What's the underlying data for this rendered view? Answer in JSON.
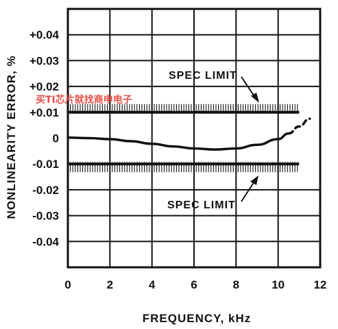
{
  "chart_data": {
    "type": "line",
    "xlabel": "FREQUENCY, kHz",
    "ylabel": "NONLINEARITY ERROR, %",
    "xlim": [
      0,
      12
    ],
    "ylim": [
      -0.05,
      0.05
    ],
    "x_ticks": [
      "0",
      "2",
      "4",
      "6",
      "8",
      "10",
      "12"
    ],
    "y_ticks": [
      "+0.04",
      "+0.03",
      "+0.02",
      "+0.01",
      "0",
      "-0.01",
      "-0.02",
      "-0.03",
      "-0.04"
    ],
    "x_tick_values": [
      0,
      2,
      4,
      6,
      8,
      10,
      12
    ],
    "y_tick_values": [
      0.04,
      0.03,
      0.02,
      0.01,
      0,
      -0.01,
      -0.02,
      -0.03,
      -0.04
    ],
    "grid": true,
    "series": [
      {
        "style": "solid",
        "x": [
          0,
          1,
          2,
          3,
          4,
          5,
          6,
          7,
          8,
          9,
          10,
          10.5
        ],
        "y": [
          0.0002,
          0.0,
          -0.0004,
          -0.0012,
          -0.0022,
          -0.0032,
          -0.004,
          -0.0044,
          -0.004,
          -0.0026,
          -0.0004,
          0.0018
        ]
      },
      {
        "style": "dashed",
        "x": [
          10.5,
          11,
          11.5
        ],
        "y": [
          0.0018,
          0.0045,
          0.0075
        ]
      }
    ],
    "spec_limits": [
      0.01,
      -0.01
    ],
    "spec_limit_xrange": [
      0,
      11
    ],
    "annotations": [
      {
        "text": "SPEC LIMIT",
        "target": "upper"
      },
      {
        "text": "SPEC LIMIT",
        "target": "lower"
      }
    ]
  },
  "watermark": "买TI芯片就找商申电子"
}
